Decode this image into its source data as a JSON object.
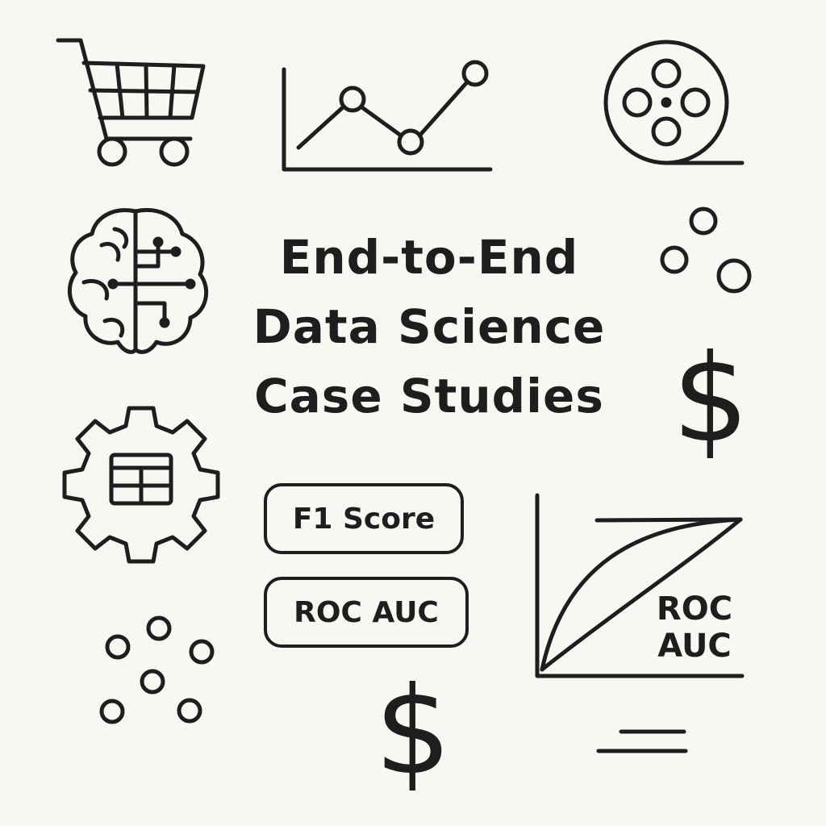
{
  "title": {
    "line1": "End-to-End",
    "line2": "Data Science",
    "line3": "Case Studies"
  },
  "badges": {
    "f1": "F1 Score",
    "roc": "ROC AUC"
  },
  "roc_chart": {
    "label_line1": "ROC",
    "label_line2": "AUC"
  },
  "symbols": {
    "dollar_top": "$",
    "dollar_bottom": "$"
  },
  "icons": [
    "shopping-cart-icon",
    "line-chart-icon",
    "film-reel-icon",
    "brain-circuit-icon",
    "bubbles-icon",
    "gear-table-icon",
    "scatter-dots-icon",
    "roc-curve-icon"
  ],
  "colors": {
    "background": "#f8f7f2",
    "ink": "#1e1e1e"
  }
}
